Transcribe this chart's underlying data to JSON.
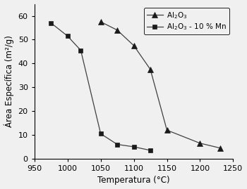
{
  "al2o3_x": [
    1050,
    1075,
    1100,
    1125,
    1150,
    1200,
    1230
  ],
  "al2o3_y": [
    57.5,
    54.0,
    47.5,
    37.5,
    12.0,
    6.5,
    4.5
  ],
  "al2o3_mn_x": [
    975,
    1000,
    1020,
    1050,
    1075,
    1100,
    1125
  ],
  "al2o3_mn_y": [
    57.0,
    51.5,
    45.5,
    10.5,
    6.0,
    5.0,
    3.5
  ],
  "line_color": "#404040",
  "marker_color": "#1a1a1a",
  "xlabel": "Temperatura (°C)",
  "ylabel": "Área Específica (m²/g)",
  "legend_al2o3": "Al$_2$O$_3$",
  "legend_al2o3_mn": "Al$_2$O$_3$ - 10 % Mn",
  "xlim": [
    950,
    1250
  ],
  "ylim": [
    0,
    65
  ],
  "xticks": [
    950,
    1000,
    1050,
    1100,
    1150,
    1200,
    1250
  ],
  "yticks": [
    0,
    10,
    20,
    30,
    40,
    50,
    60
  ],
  "background_color": "#f0f0f0"
}
